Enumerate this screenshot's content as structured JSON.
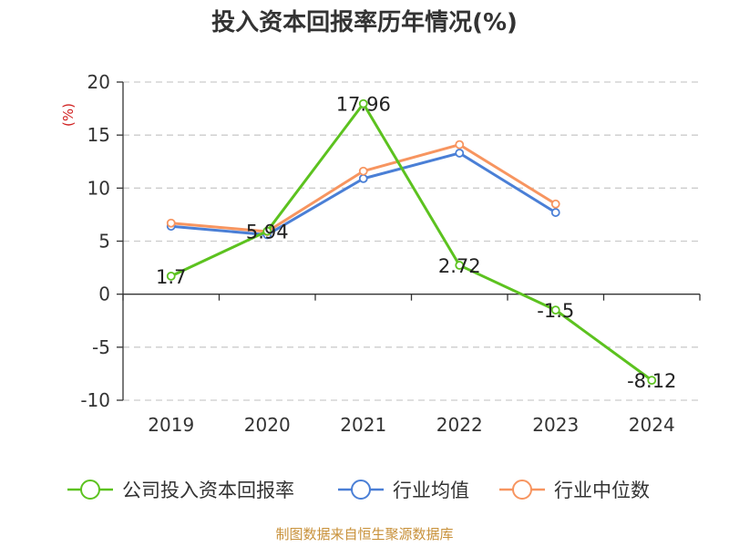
{
  "chart_data": {
    "type": "line",
    "title": "投入资本回报率历年情况(%)",
    "ylabel": "(%)",
    "xlabel": "",
    "categories": [
      "2019",
      "2020",
      "2021",
      "2022",
      "2023",
      "2024"
    ],
    "ylim": [
      -10,
      20
    ],
    "yticks": [
      20,
      15,
      10,
      5,
      0,
      -5,
      -10
    ],
    "grid": true,
    "legend_position": "bottom",
    "series": [
      {
        "name": "公司投入资本回报率",
        "color": "#5cc21f",
        "values": [
          1.7,
          5.94,
          17.96,
          2.72,
          -1.5,
          -8.12
        ],
        "labels": [
          "1.7",
          "5.94",
          "17.96",
          "2.72",
          "-1.5",
          "-8.12"
        ]
      },
      {
        "name": "行业均值",
        "color": "#4a7fd6",
        "values": [
          6.4,
          5.6,
          10.9,
          13.3,
          7.7,
          null
        ]
      },
      {
        "name": "行业中位数",
        "color": "#f79560",
        "values": [
          6.7,
          5.9,
          11.6,
          14.1,
          8.5,
          null
        ]
      }
    ]
  },
  "colors": {
    "ylabel": "#d02020",
    "source": "#c8913a",
    "axis": "#333333",
    "grid": "#cccccc"
  },
  "source": "制图数据来自恒生聚源数据库"
}
